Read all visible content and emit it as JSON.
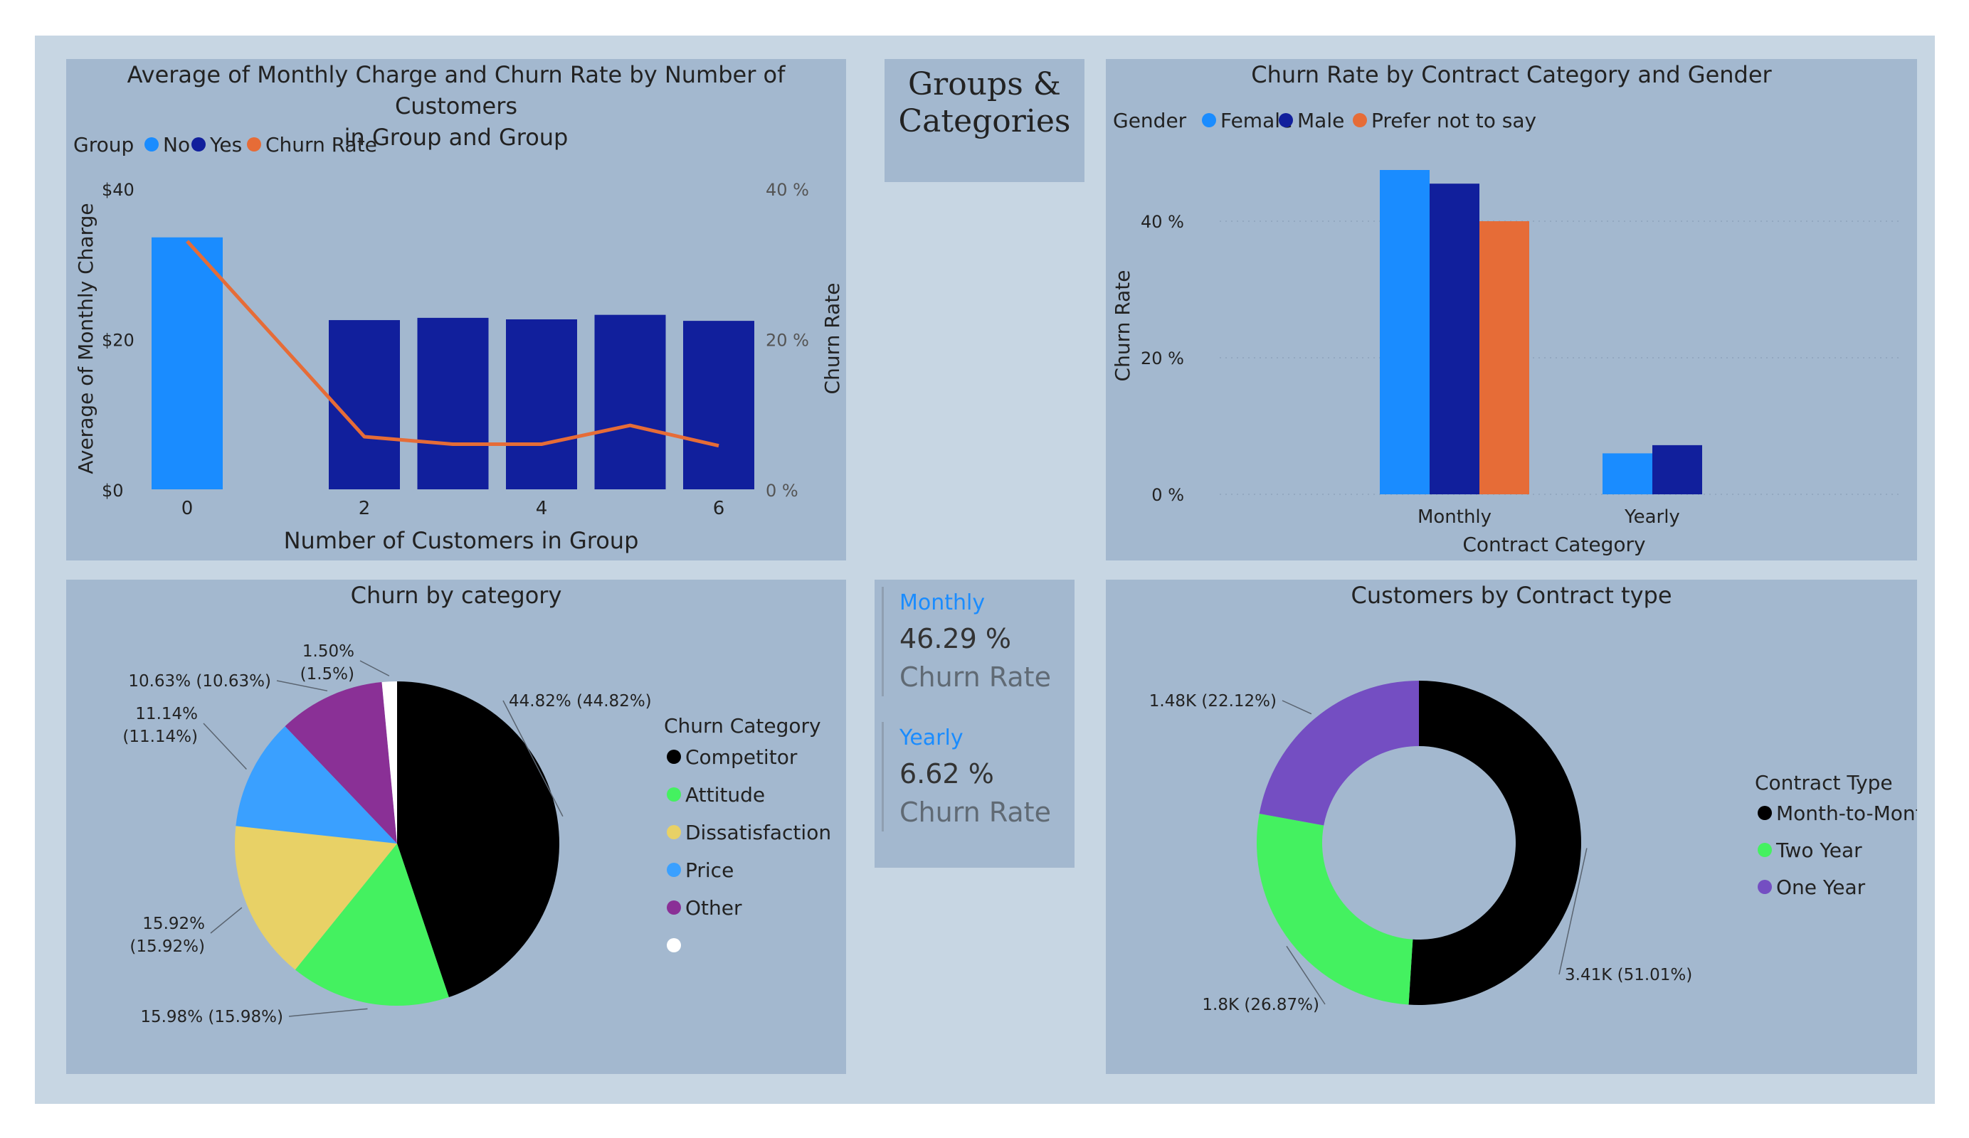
{
  "colors": {
    "dashboard_bg": "#c7d6e3",
    "panel_bg": "#a3b8cf",
    "light_blue": "#1a8cff",
    "dark_blue": "#111f9c",
    "orange": "#e66c37",
    "black": "#000000",
    "green": "#44f160",
    "yellow": "#e8d166",
    "price_blue": "#3aa0ff",
    "purple": "#8a3096",
    "white": "#ffffff",
    "violet": "#744ec2"
  },
  "groups_title": {
    "line1": "Groups &",
    "line2": "Categories"
  },
  "cards": {
    "monthly": {
      "label": "Monthly",
      "value": "46.29 %",
      "sub": "Churn Rate"
    },
    "yearly": {
      "label": "Yearly",
      "value": "6.62 %",
      "sub": "Churn Rate"
    }
  },
  "chart_data": [
    {
      "id": "monthly-charge-churn",
      "type": "bar",
      "title_line1": "Average of Monthly Charge and Churn Rate by Number of Customers",
      "title_line2": "in Group and Group",
      "legend": {
        "title": "Group",
        "entries": [
          "No",
          "Yes",
          "Churn Rate"
        ]
      },
      "xlabel": "Number of Customers in Group",
      "ylabel": "Average of Monthly Charge",
      "y2label": "Churn Rate",
      "x_ticks": [
        "0",
        "2",
        "4",
        "6"
      ],
      "y_ticks": [
        "$40",
        "$20",
        "$0"
      ],
      "y2_ticks": [
        "40 %",
        "20 %",
        "0 %"
      ],
      "ylim": [
        0,
        40
      ],
      "y2lim": [
        0,
        40
      ],
      "bars": [
        {
          "x": 0,
          "group": "No",
          "value": 33.5
        },
        {
          "x": 2,
          "group": "Yes",
          "value": 22.5
        },
        {
          "x": 3,
          "group": "Yes",
          "value": 22.8
        },
        {
          "x": 4,
          "group": "Yes",
          "value": 22.6
        },
        {
          "x": 5,
          "group": "Yes",
          "value": 23.2
        },
        {
          "x": 6,
          "group": "Yes",
          "value": 22.4
        }
      ],
      "line": {
        "name": "Churn Rate",
        "x": [
          0,
          2,
          3,
          4,
          5,
          6
        ],
        "values": [
          33,
          7,
          6,
          6,
          8.5,
          5.8
        ]
      }
    },
    {
      "id": "churn-contract-gender",
      "type": "bar",
      "title": "Churn Rate by Contract Category and Gender",
      "legend": {
        "title": "Gender",
        "entries": [
          "Female",
          "Male",
          "Prefer not to say"
        ]
      },
      "categories": [
        "Monthly",
        "Yearly"
      ],
      "series": [
        {
          "name": "Female",
          "values": [
            47.5,
            6
          ]
        },
        {
          "name": "Male",
          "values": [
            45.5,
            7.2
          ]
        },
        {
          "name": "Prefer not to say",
          "values": [
            40,
            null
          ]
        }
      ],
      "xlabel": "Contract Category",
      "ylabel": "Churn Rate",
      "y_ticks": [
        "40 %",
        "20 %",
        "0 %"
      ],
      "ylim": [
        0,
        50
      ]
    },
    {
      "id": "churn-by-category",
      "type": "pie",
      "title": "Churn by category",
      "legend_title": "Churn Category",
      "slices": [
        {
          "name": "Competitor",
          "value": 44.82,
          "label_line1": "44.82% (44.82%)",
          "label_line2": ""
        },
        {
          "name": "Attitude",
          "value": 15.98,
          "label_line1": "15.98% (15.98%)",
          "label_line2": ""
        },
        {
          "name": "Dissatisfaction",
          "value": 15.92,
          "label_line1": "15.92%",
          "label_line2": "(15.92%)"
        },
        {
          "name": "Price",
          "value": 11.14,
          "label_line1": "11.14%",
          "label_line2": "(11.14%)"
        },
        {
          "name": "Other",
          "value": 10.63,
          "label_line1": "10.63% (10.63%)",
          "label_line2": ""
        },
        {
          "name": "",
          "value": 1.5,
          "label_line1": "1.50%",
          "label_line2": "(1.5%)"
        }
      ]
    },
    {
      "id": "customers-by-contract",
      "type": "pie",
      "title": "Customers by Contract type",
      "legend_title": "Contract Type",
      "slices": [
        {
          "name": "Month-to-Month",
          "value": 51.01,
          "label": "3.41K (51.01%)"
        },
        {
          "name": "Two Year",
          "value": 26.87,
          "label": "1.8K (26.87%)"
        },
        {
          "name": "One Year",
          "value": 22.12,
          "label": "1.48K (22.12%)"
        }
      ]
    }
  ]
}
